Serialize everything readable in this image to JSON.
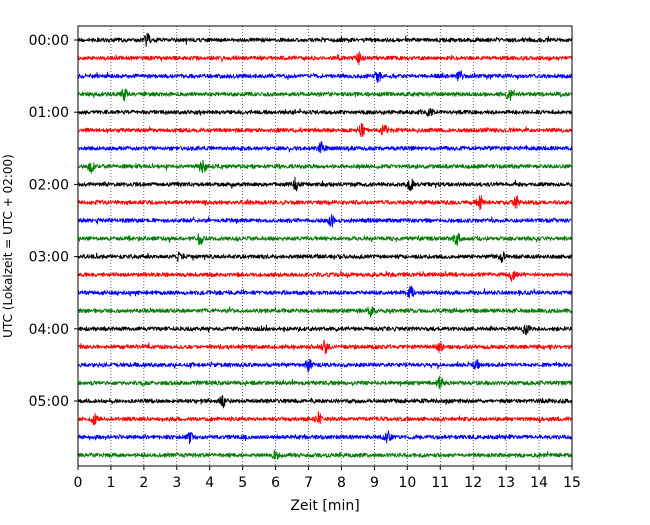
{
  "chart_data": {
    "type": "line",
    "title": "",
    "xlabel": "Zeit  [min]",
    "ylabel": "UTC (Lokalzeit = UTC + 02:00)",
    "xlim": [
      0,
      15
    ],
    "x_ticks": [
      "0",
      "1",
      "2",
      "3",
      "4",
      "5",
      "6",
      "7",
      "8",
      "9",
      "10",
      "11",
      "12",
      "13",
      "14",
      "15"
    ],
    "y_tick_labels": [
      "00:00",
      "01:00",
      "02:00",
      "03:00",
      "04:00",
      "05:00"
    ],
    "grid": "vertical dotted at each minute",
    "trace_interval_minutes": 15,
    "trace_count": 24,
    "trace_colors": [
      "#000000",
      "#ff0000",
      "#0000ff",
      "#008000"
    ],
    "series": [
      {
        "start_utc": "00:00",
        "color": "#000000",
        "bursts_min": [
          2.1
        ]
      },
      {
        "start_utc": "00:15",
        "color": "#ff0000",
        "bursts_min": [
          8.5
        ]
      },
      {
        "start_utc": "00:30",
        "color": "#0000ff",
        "bursts_min": [
          9.1,
          11.6
        ]
      },
      {
        "start_utc": "00:45",
        "color": "#008000",
        "bursts_min": [
          1.4,
          13.1
        ]
      },
      {
        "start_utc": "01:00",
        "color": "#000000",
        "bursts_min": [
          10.7
        ]
      },
      {
        "start_utc": "01:15",
        "color": "#ff0000",
        "bursts_min": [
          8.6,
          9.3
        ]
      },
      {
        "start_utc": "01:30",
        "color": "#0000ff",
        "bursts_min": [
          7.4
        ]
      },
      {
        "start_utc": "01:45",
        "color": "#008000",
        "bursts_min": [
          0.4,
          3.8
        ]
      },
      {
        "start_utc": "02:00",
        "color": "#000000",
        "bursts_min": [
          6.6,
          10.1
        ]
      },
      {
        "start_utc": "02:15",
        "color": "#ff0000",
        "bursts_min": [
          12.2,
          13.3
        ]
      },
      {
        "start_utc": "02:30",
        "color": "#0000ff",
        "bursts_min": [
          7.7
        ]
      },
      {
        "start_utc": "02:45",
        "color": "#008000",
        "bursts_min": [
          3.7,
          11.5
        ]
      },
      {
        "start_utc": "03:00",
        "color": "#000000",
        "bursts_min": [
          3.1,
          12.9
        ]
      },
      {
        "start_utc": "03:15",
        "color": "#ff0000",
        "bursts_min": [
          13.2
        ]
      },
      {
        "start_utc": "03:30",
        "color": "#0000ff",
        "bursts_min": [
          10.1
        ]
      },
      {
        "start_utc": "03:45",
        "color": "#008000",
        "bursts_min": [
          8.9
        ]
      },
      {
        "start_utc": "04:00",
        "color": "#000000",
        "bursts_min": [
          13.6
        ]
      },
      {
        "start_utc": "04:15",
        "color": "#ff0000",
        "bursts_min": [
          7.5,
          11.0
        ]
      },
      {
        "start_utc": "04:30",
        "color": "#0000ff",
        "bursts_min": [
          7.0,
          12.1
        ]
      },
      {
        "start_utc": "04:45",
        "color": "#008000",
        "bursts_min": [
          11.0
        ]
      },
      {
        "start_utc": "05:00",
        "color": "#000000",
        "bursts_min": [
          4.4
        ]
      },
      {
        "start_utc": "05:15",
        "color": "#ff0000",
        "bursts_min": [
          0.5,
          7.3
        ]
      },
      {
        "start_utc": "05:30",
        "color": "#0000ff",
        "bursts_min": [
          3.4,
          9.4
        ]
      },
      {
        "start_utc": "05:45",
        "color": "#008000",
        "bursts_min": [
          6.0
        ]
      }
    ]
  }
}
